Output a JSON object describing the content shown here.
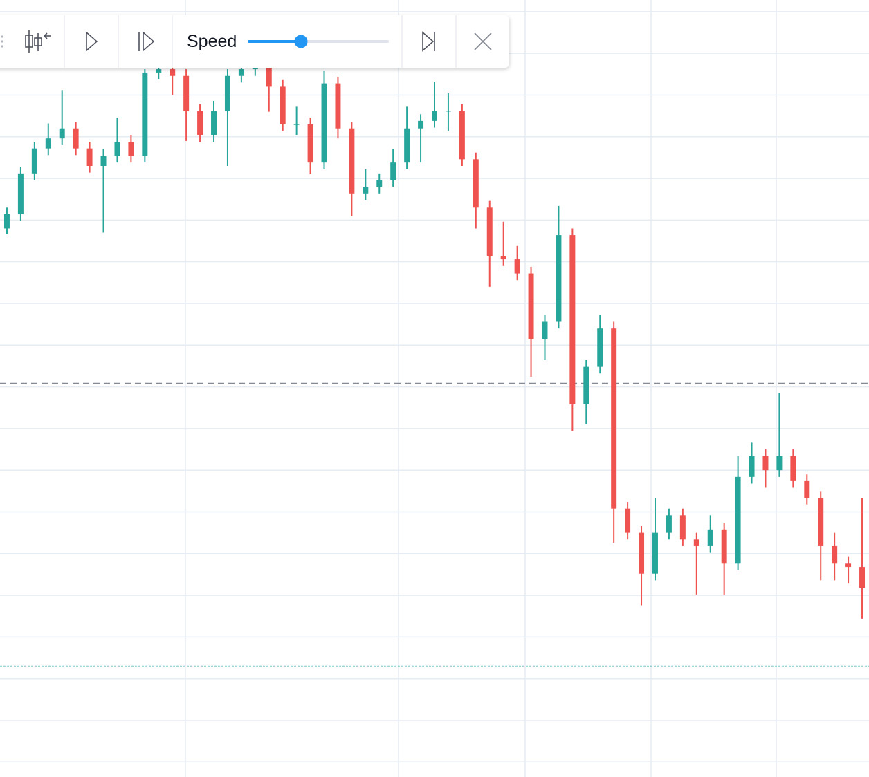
{
  "toolbar": {
    "speed_label": "Speed"
  },
  "chart_data": {
    "type": "candlestick",
    "xlim": [
      0,
      63
    ],
    "ylim": [
      -1.8,
      91.4
    ],
    "grid": true,
    "grid_x": [
      13.44,
      28.89,
      38.07,
      47.2,
      56.28
    ],
    "grid_y": [
      0,
      5,
      10,
      15,
      20,
      25,
      30,
      35,
      40,
      45,
      50,
      55,
      60,
      65,
      70,
      75,
      80,
      85,
      90
    ],
    "up_color": "#26a69a",
    "down_color": "#ef5350",
    "open": [
      64.0,
      65.7,
      70.6,
      73.6,
      74.8,
      76.0,
      73.6,
      71.5,
      72.7,
      74.4,
      72.7,
      82.7,
      83.1,
      82.3,
      78.1,
      75.2,
      78.1,
      82.3,
      83.1,
      83.5,
      81.0,
      76.5,
      76.5,
      71.9,
      81.4,
      76.0,
      68.2,
      69.0,
      69.8,
      71.9,
      76.0,
      76.9,
      78.1,
      78.1,
      72.3,
      66.5,
      60.7,
      60.3,
      58.6,
      50.7,
      52.8,
      63.2,
      42.9,
      47.4,
      52.0,
      30.4,
      27.5,
      22.6,
      27.5,
      29.6,
      26.7,
      25.9,
      27.9,
      23.8,
      34.2,
      36.7,
      35.0,
      36.7,
      33.7,
      31.7,
      25.9,
      23.8,
      23.4
    ],
    "high": [
      66.5,
      71.4,
      74.4,
      76.6,
      80.6,
      76.8,
      74.4,
      73.5,
      77.3,
      75.2,
      83.1,
      84.0,
      83.9,
      83.1,
      78.9,
      79.3,
      83.1,
      84.0,
      84.3,
      84.3,
      81.8,
      78.6,
      77.3,
      82.9,
      82.2,
      76.8,
      71.1,
      70.6,
      73.5,
      78.6,
      77.7,
      81.6,
      80.2,
      78.9,
      73.1,
      67.3,
      64.8,
      61.9,
      59.4,
      53.6,
      66.7,
      64.0,
      48.2,
      53.6,
      52.8,
      31.2,
      28.3,
      31.7,
      30.4,
      30.4,
      27.5,
      29.6,
      28.7,
      36.7,
      38.3,
      37.5,
      44.3,
      37.5,
      34.5,
      32.5,
      27.5,
      24.6,
      31.7
    ],
    "low": [
      63.3,
      64.9,
      69.8,
      72.8,
      74.0,
      72.8,
      70.7,
      63.5,
      71.9,
      71.9,
      71.9,
      81.9,
      80.0,
      74.5,
      74.4,
      74.4,
      71.5,
      81.5,
      82.3,
      78.0,
      75.7,
      75.2,
      70.5,
      71.1,
      74.8,
      65.5,
      67.4,
      68.2,
      69.0,
      71.1,
      71.9,
      76.1,
      75.7,
      71.5,
      64.0,
      57.0,
      59.5,
      57.8,
      46.2,
      48.2,
      52.0,
      39.7,
      40.5,
      46.6,
      26.3,
      26.7,
      18.8,
      21.8,
      26.7,
      25.9,
      20.1,
      25.1,
      20.1,
      23.0,
      33.4,
      32.9,
      34.2,
      32.9,
      30.9,
      21.8,
      21.8,
      21.4,
      17.2
    ],
    "close": [
      65.7,
      70.6,
      73.6,
      74.8,
      76.0,
      73.6,
      71.5,
      72.7,
      74.4,
      72.7,
      82.7,
      83.1,
      82.3,
      78.1,
      75.2,
      78.1,
      82.3,
      83.1,
      83.5,
      81.0,
      76.5,
      76.5,
      71.9,
      81.4,
      76.0,
      68.2,
      69.0,
      69.8,
      71.9,
      76.0,
      76.9,
      78.1,
      78.1,
      72.3,
      66.5,
      60.7,
      60.3,
      58.6,
      50.7,
      52.8,
      63.2,
      42.9,
      47.4,
      52.0,
      30.4,
      27.5,
      22.6,
      27.5,
      29.6,
      26.7,
      25.9,
      27.9,
      23.8,
      34.2,
      36.7,
      35.0,
      36.7,
      33.7,
      31.7,
      25.9,
      23.8,
      23.4,
      20.9
    ],
    "price_lines": [
      {
        "value": 45.4,
        "color": "#868993",
        "style": "dashed"
      },
      {
        "value": 11.5,
        "color": "#089981",
        "style": "dotted"
      }
    ]
  }
}
